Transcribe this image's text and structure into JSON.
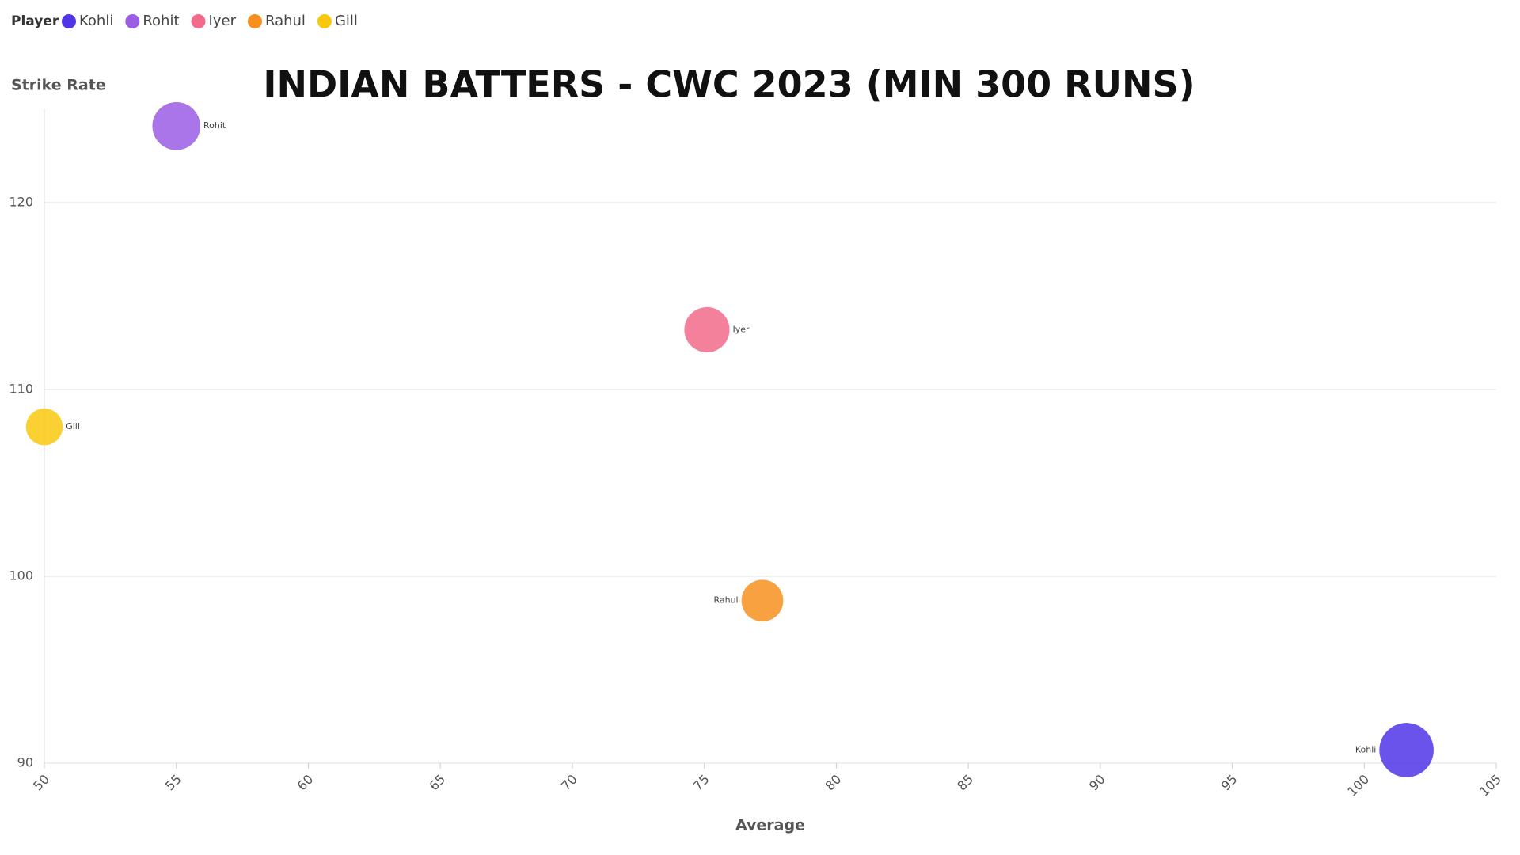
{
  "chart_data": {
    "type": "bubble",
    "title": "INDIAN BATTERS - CWC 2023 (MIN 300 RUNS)",
    "legend_title": "Player",
    "x_label": "Average",
    "y_label": "Strike Rate",
    "series": [
      {
        "name": "Kohli",
        "color": "#4f35e6",
        "x": [
          101.6
        ],
        "values": [
          90.7
        ],
        "sizes": [
          765
        ]
      },
      {
        "name": "Rohit",
        "color": "#9b5de5",
        "x": [
          55.0
        ],
        "values": [
          124.1
        ],
        "sizes": [
          597
        ]
      },
      {
        "name": "Iyer",
        "color": "#f26b8a",
        "x": [
          75.1
        ],
        "values": [
          113.2
        ],
        "sizes": [
          530
        ]
      },
      {
        "name": "Rahul",
        "color": "#f7901e",
        "x": [
          77.2
        ],
        "values": [
          98.7
        ],
        "sizes": [
          452
        ]
      },
      {
        "name": "Gill",
        "color": "#f9c80e",
        "x": [
          50.0
        ],
        "values": [
          108.0
        ],
        "sizes": [
          350
        ]
      }
    ],
    "xlim": [
      50,
      105
    ],
    "xticks": [
      50,
      55,
      60,
      65,
      70,
      75,
      80,
      85,
      90,
      95,
      100,
      105
    ],
    "ylim": [
      90,
      125
    ],
    "yticks": [
      90,
      100,
      110,
      120
    ],
    "grid": true
  }
}
